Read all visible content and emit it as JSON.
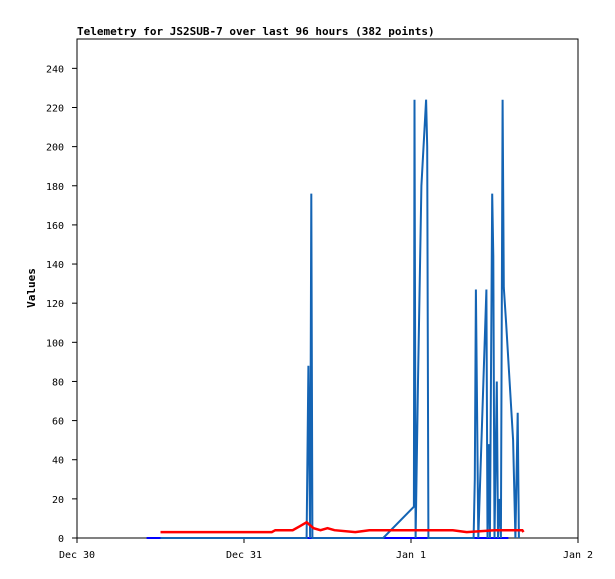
{
  "chart_data": {
    "type": "line",
    "title": "Telemetry for JS2SUB-7 over last 96 hours (382 points)",
    "xlabel": "",
    "ylabel": "Values",
    "x_axis": {
      "type": "date",
      "min": "Dec 30",
      "max": "Jan 2",
      "tick_labels": [
        "Dec 30",
        "Dec 31",
        "Jan 1",
        "Jan 2"
      ]
    },
    "y_axis": {
      "min": 0,
      "max": 255,
      "tick_labels": [
        "0",
        "20",
        "40",
        "60",
        "80",
        "100",
        "120",
        "140",
        "160",
        "180",
        "200",
        "220",
        "240"
      ]
    },
    "grid": false,
    "legend": "none",
    "series": [
      {
        "color": "#0000ff",
        "points": [
          [
            "Dec 30 10:00",
            0
          ],
          [
            "Jan 1 14:00",
            0
          ]
        ]
      },
      {
        "color": "#1464b4",
        "points": [
          [
            "Dec 30 12:00",
            0
          ],
          [
            "Dec 31 09:00",
            0
          ],
          [
            "Dec 31 09:15",
            88
          ],
          [
            "Dec 31 09:30",
            0
          ],
          [
            "Dec 31 09:40",
            176
          ],
          [
            "Dec 31 09:50",
            0
          ],
          [
            "Dec 31 15:00",
            0
          ],
          [
            "Dec 31 20:00",
            0
          ],
          [
            "Jan 1 00:25",
            16
          ],
          [
            "Jan 1 00:30",
            224
          ],
          [
            "Jan 1 00:40",
            0
          ],
          [
            "Jan 1 01:00",
            80
          ],
          [
            "Jan 1 01:30",
            180
          ],
          [
            "Jan 1 02:10",
            224
          ],
          [
            "Jan 1 02:20",
            200
          ],
          [
            "Jan 1 02:30",
            0
          ],
          [
            "Jan 1 09:00",
            0
          ],
          [
            "Jan 1 09:10",
            30
          ],
          [
            "Jan 1 09:20",
            127
          ],
          [
            "Jan 1 09:30",
            64
          ],
          [
            "Jan 1 09:40",
            0
          ],
          [
            "Jan 1 10:50",
            127
          ],
          [
            "Jan 1 11:00",
            0
          ],
          [
            "Jan 1 11:10",
            48
          ],
          [
            "Jan 1 11:20",
            0
          ],
          [
            "Jan 1 11:40",
            176
          ],
          [
            "Jan 1 11:50",
            144
          ],
          [
            "Jan 1 12:00",
            0
          ],
          [
            "Jan 1 12:20",
            80
          ],
          [
            "Jan 1 12:30",
            0
          ],
          [
            "Jan 1 12:45",
            20
          ],
          [
            "Jan 1 12:55",
            0
          ],
          [
            "Jan 1 13:10",
            224
          ],
          [
            "Jan 1 13:20",
            128
          ],
          [
            "Jan 1 13:40",
            110
          ],
          [
            "Jan 1 14:10",
            80
          ],
          [
            "Jan 1 14:40",
            50
          ],
          [
            "Jan 1 15:00",
            0
          ],
          [
            "Jan 1 15:20",
            64
          ],
          [
            "Jan 1 15:30",
            0
          ]
        ]
      },
      {
        "color": "#ff0000",
        "points": [
          [
            "Dec 30 12:00",
            3
          ],
          [
            "Dec 30 20:00",
            3
          ],
          [
            "Dec 31 00:00",
            3
          ],
          [
            "Dec 31 04:00",
            3
          ],
          [
            "Dec 31 04:30",
            4
          ],
          [
            "Dec 31 07:00",
            4
          ],
          [
            "Dec 31 08:00",
            6
          ],
          [
            "Dec 31 09:00",
            8
          ],
          [
            "Dec 31 10:00",
            5
          ],
          [
            "Dec 31 11:00",
            4
          ],
          [
            "Dec 31 12:00",
            5
          ],
          [
            "Dec 31 13:00",
            4
          ],
          [
            "Dec 31 16:00",
            3
          ],
          [
            "Dec 31 18:00",
            4
          ],
          [
            "Jan 1 00:00",
            4
          ],
          [
            "Jan 1 06:00",
            4
          ],
          [
            "Jan 1 08:00",
            3
          ],
          [
            "Jan 1 12:00",
            4
          ],
          [
            "Jan 1 16:00",
            4
          ],
          [
            "Jan 1 16:10",
            3
          ]
        ]
      }
    ]
  }
}
